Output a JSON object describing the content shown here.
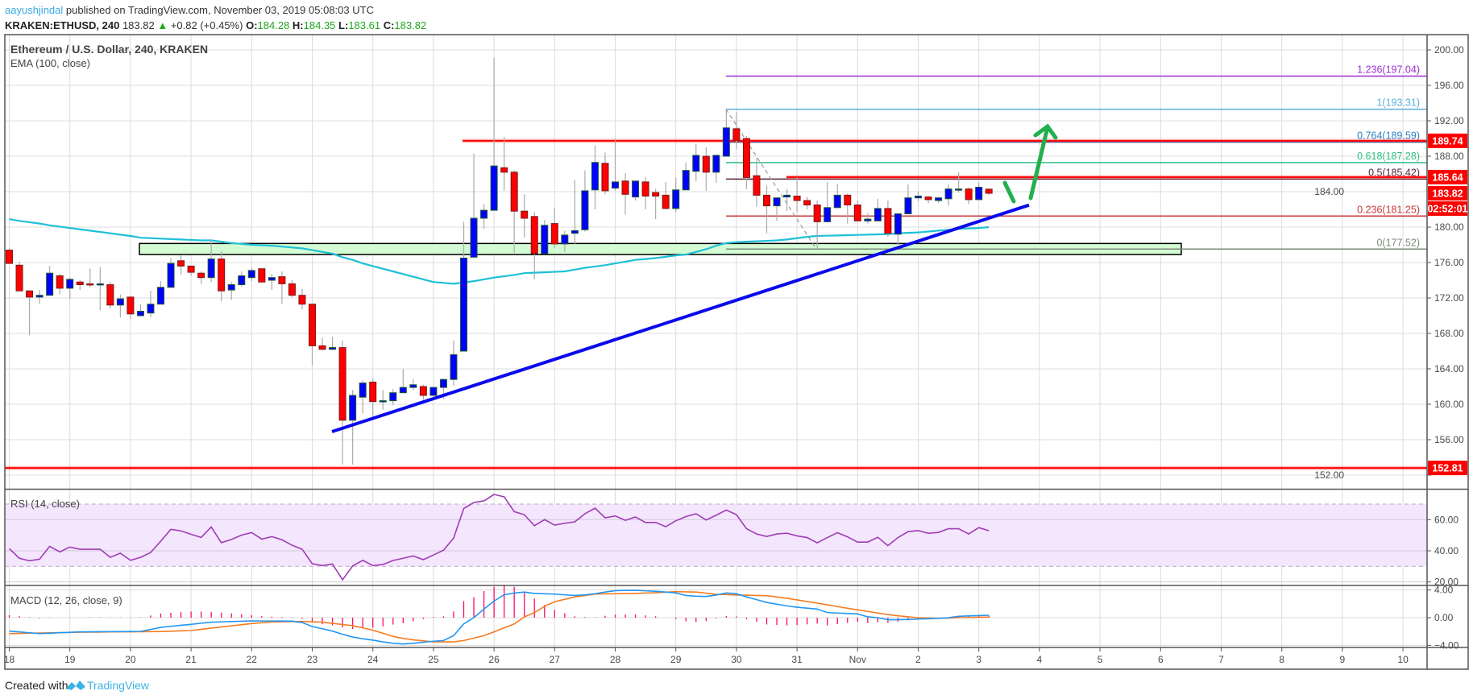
{
  "header": {
    "author": "aayushjindal",
    "published": "published on TradingView.com, November 03, 2019 05:08:03 UTC",
    "symbol": "KRAKEN:ETHUSD, 240",
    "last": "183.82",
    "change": "+0.82 (+0.45%)",
    "o_label": "O:",
    "o": "184.28",
    "h_label": "H:",
    "h": "184.35",
    "l_label": "L:",
    "l": "183.61",
    "c_label": "C:",
    "c": "183.82",
    "up_color": "#22a722"
  },
  "overlay": {
    "title": "Ethereum / U.S. Dollar, 240, KRAKEN",
    "ema": "EMA (100, close)",
    "rsi": "RSI (14, close)",
    "macd": "MACD (12, 26, close, 9)"
  },
  "footer": {
    "created_with": "Created with",
    "brand": "TradingView",
    "brand_color": "#3bb3e4"
  },
  "chart_data": {
    "type": "candlestick",
    "interval": "240",
    "up_color": "#0000ff",
    "down_color": "#ff0000",
    "price_ticks": [
      "200.00",
      "196.00",
      "192.00",
      "188.00",
      "184.00",
      "180.00",
      "176.00",
      "172.00",
      "168.00",
      "164.00",
      "160.00",
      "156.00",
      "152.00"
    ],
    "time_ticks": [
      "18",
      "19",
      "20",
      "21",
      "22",
      "23",
      "24",
      "25",
      "26",
      "27",
      "28",
      "29",
      "30",
      "31",
      "Nov",
      "2",
      "3",
      "4",
      "5",
      "6",
      "7",
      "8",
      "9",
      "10"
    ],
    "days": [
      {
        "date": "2019-10-18",
        "bars": [
          [
            177.4,
            177.6,
            175.9,
            175.9
          ],
          [
            175.7,
            176.1,
            172.8,
            172.8
          ],
          [
            172.8,
            172.8,
            167.8,
            172.1
          ],
          [
            172.1,
            172.9,
            171.3,
            172.3
          ],
          [
            172.3,
            175.6,
            172.3,
            174.8
          ],
          [
            174.5,
            174.7,
            172.4,
            173.1
          ]
        ]
      },
      {
        "date": "2019-10-19",
        "bars": [
          [
            173.1,
            174.3,
            171.9,
            174.1
          ],
          [
            173.8,
            174.0,
            172.9,
            173.5
          ],
          [
            173.6,
            175.3,
            173.2,
            173.5
          ],
          [
            173.5,
            175.5,
            170.6,
            173.6
          ],
          [
            173.5,
            173.8,
            170.8,
            171.2
          ],
          [
            171.2,
            172.4,
            169.8,
            171.9
          ]
        ]
      },
      {
        "date": "2019-10-20",
        "bars": [
          [
            172.1,
            172.1,
            169.6,
            170.2
          ],
          [
            170.0,
            171.3,
            169.9,
            170.5
          ],
          [
            170.3,
            172.8,
            169.8,
            171.3
          ],
          [
            171.3,
            173.9,
            171.3,
            173.2
          ],
          [
            173.2,
            176.5,
            173.2,
            175.9
          ],
          [
            176.2,
            176.8,
            174.6,
            175.6
          ]
        ]
      },
      {
        "date": "2019-10-21",
        "bars": [
          [
            175.6,
            175.6,
            174.5,
            174.9
          ],
          [
            174.8,
            175.0,
            173.6,
            174.3
          ],
          [
            174.3,
            178.5,
            173.8,
            176.4
          ],
          [
            176.4,
            177.3,
            171.6,
            172.8
          ],
          [
            172.9,
            173.8,
            171.8,
            173.5
          ],
          [
            173.5,
            175.0,
            173.3,
            174.5
          ]
        ]
      },
      {
        "date": "2019-10-22",
        "bars": [
          [
            174.3,
            175.4,
            173.9,
            175.1
          ],
          [
            175.3,
            175.3,
            173.8,
            173.8
          ],
          [
            174.0,
            174.7,
            172.9,
            174.3
          ],
          [
            174.4,
            175.0,
            171.3,
            173.6
          ],
          [
            173.6,
            174.0,
            172.1,
            172.3
          ],
          [
            172.3,
            173.0,
            170.7,
            171.3
          ]
        ]
      },
      {
        "date": "2019-10-23",
        "bars": [
          [
            171.3,
            171.3,
            164.4,
            166.6
          ],
          [
            166.6,
            167.5,
            166.1,
            166.2
          ],
          [
            166.2,
            167.6,
            166.1,
            166.4
          ],
          [
            166.4,
            167.2,
            153.2,
            158.2
          ],
          [
            158.2,
            161.6,
            153.2,
            161.0
          ],
          [
            160.8,
            162.7,
            159.0,
            162.4
          ]
        ]
      },
      {
        "date": "2019-10-24",
        "bars": [
          [
            162.5,
            162.9,
            158.5,
            160.3
          ],
          [
            160.3,
            161.6,
            159.4,
            160.4
          ],
          [
            160.4,
            161.7,
            159.9,
            161.3
          ],
          [
            161.3,
            164.0,
            161.3,
            161.9
          ],
          [
            161.9,
            162.8,
            161.6,
            162.2
          ],
          [
            162.0,
            162.2,
            160.5,
            161.0
          ]
        ]
      },
      {
        "date": "2019-10-25",
        "bars": [
          [
            161.0,
            161.9,
            160.9,
            161.9
          ],
          [
            161.9,
            162.9,
            160.6,
            162.8
          ],
          [
            162.8,
            167.2,
            162.1,
            165.6
          ],
          [
            166.0,
            180.6,
            166.0,
            176.5
          ],
          [
            176.6,
            188.3,
            176.6,
            181.0
          ],
          [
            181.0,
            182.6,
            179.8,
            181.9
          ]
        ]
      },
      {
        "date": "2019-10-26",
        "bars": [
          [
            181.9,
            199.1,
            181.9,
            186.9
          ],
          [
            186.7,
            190.2,
            184.1,
            186.2
          ],
          [
            186.2,
            186.4,
            177.1,
            181.8
          ],
          [
            181.8,
            183.7,
            178.8,
            181.0
          ],
          [
            181.2,
            181.7,
            174.1,
            177.0
          ],
          [
            177.0,
            180.8,
            177.0,
            180.2
          ]
        ]
      },
      {
        "date": "2019-10-27",
        "bars": [
          [
            180.4,
            182.2,
            177.6,
            178.1
          ],
          [
            178.1,
            179.6,
            177.2,
            179.1
          ],
          [
            179.3,
            185.3,
            178.1,
            179.6
          ],
          [
            179.7,
            186.4,
            179.5,
            184.1
          ],
          [
            184.2,
            189.2,
            182.0,
            187.3
          ],
          [
            187.2,
            188.4,
            183.7,
            184.1
          ]
        ]
      },
      {
        "date": "2019-10-28",
        "bars": [
          [
            184.4,
            190.0,
            184.1,
            185.1
          ],
          [
            185.2,
            186.1,
            181.4,
            183.7
          ],
          [
            183.4,
            185.2,
            183.0,
            185.2
          ],
          [
            185.1,
            185.6,
            182.0,
            183.5
          ],
          [
            183.9,
            184.3,
            180.9,
            183.5
          ],
          [
            183.6,
            185.1,
            182.0,
            182.1
          ]
        ]
      },
      {
        "date": "2019-10-29",
        "bars": [
          [
            182.1,
            185.6,
            181.7,
            184.2
          ],
          [
            184.2,
            187.3,
            184.2,
            186.4
          ],
          [
            186.3,
            189.4,
            185.2,
            188.1
          ],
          [
            188.0,
            189.0,
            184.1,
            186.2
          ],
          [
            186.2,
            188.2,
            185.0,
            188.1
          ],
          [
            188.0,
            193.31,
            188.0,
            191.2
          ]
        ]
      },
      {
        "date": "2019-10-30",
        "bars": [
          [
            191.1,
            193.0,
            188.8,
            189.8
          ],
          [
            190.0,
            190.3,
            184.3,
            185.6
          ],
          [
            185.8,
            187.8,
            182.3,
            183.6
          ],
          [
            183.6,
            184.7,
            179.3,
            182.4
          ],
          [
            182.4,
            183.3,
            180.7,
            183.3
          ],
          [
            183.4,
            184.3,
            181.8,
            183.6
          ]
        ]
      },
      {
        "date": "2019-10-31",
        "bars": [
          [
            183.5,
            185.6,
            181.7,
            183.0
          ],
          [
            183.0,
            183.4,
            182.0,
            182.5
          ],
          [
            182.5,
            183.0,
            177.52,
            180.6
          ],
          [
            180.6,
            185.1,
            180.6,
            182.2
          ],
          [
            182.2,
            184.9,
            182.2,
            183.6
          ],
          [
            183.6,
            183.8,
            180.4,
            182.5
          ]
        ]
      },
      {
        "date": "2019-11-01",
        "bars": [
          [
            182.5,
            183.0,
            180.7,
            180.7
          ],
          [
            180.7,
            181.6,
            180.4,
            180.9
          ],
          [
            180.7,
            183.2,
            180.7,
            182.1
          ],
          [
            182.1,
            183.0,
            178.9,
            179.3
          ],
          [
            179.2,
            181.5,
            178.0,
            181.5
          ],
          [
            181.5,
            184.8,
            181.5,
            183.3
          ]
        ]
      },
      {
        "date": "2019-11-02",
        "bars": [
          [
            183.3,
            184.0,
            182.9,
            183.5
          ],
          [
            183.4,
            183.5,
            182.7,
            183.1
          ],
          [
            183.0,
            183.4,
            182.7,
            183.3
          ],
          [
            183.2,
            184.8,
            182.4,
            184.3
          ],
          [
            184.3,
            186.2,
            183.9,
            184.3
          ],
          [
            184.3,
            184.5,
            182.6,
            183.1
          ]
        ]
      },
      {
        "date": "2019-11-03",
        "bars": [
          [
            183.1,
            185.0,
            183.1,
            184.5
          ],
          [
            184.28,
            184.35,
            183.61,
            183.82
          ]
        ]
      }
    ],
    "ema": {
      "name": "EMA (100, close)",
      "color": "#1ec0d8",
      "values": [
        180.9,
        180.7,
        180.55,
        180.4,
        180.2,
        180.05,
        179.9,
        179.75,
        179.6,
        179.45,
        179.3,
        179.15,
        179.0,
        178.8,
        178.75,
        178.7,
        178.65,
        178.6,
        178.55,
        178.5,
        178.5,
        178.35,
        178.2,
        178.1,
        178.0,
        177.95,
        177.9,
        177.8,
        177.7,
        177.6,
        177.4,
        177.2,
        177.0,
        176.6,
        176.3,
        175.9,
        175.6,
        175.3,
        175.0,
        174.7,
        174.4,
        174.1,
        173.8,
        173.7,
        173.6,
        173.75,
        173.9,
        174.1,
        174.3,
        174.45,
        174.6,
        174.8,
        174.85,
        174.9,
        174.95,
        175.0,
        175.2,
        175.4,
        175.55,
        175.7,
        175.9,
        176.1,
        176.3,
        176.4,
        176.5,
        176.65,
        176.8,
        176.9,
        177.2,
        177.5,
        177.9,
        178.2,
        178.3,
        178.35,
        178.4,
        178.45,
        178.5,
        178.6,
        178.75,
        178.9,
        179.0,
        179.03,
        179.06,
        179.09,
        179.12,
        179.15,
        179.18,
        179.2,
        179.3,
        179.35,
        179.4,
        179.5,
        179.6,
        179.7,
        179.8,
        179.85,
        179.9,
        180.0
      ]
    },
    "levels": [
      {
        "price": 189.74,
        "tag": "189.74",
        "color": "#ff0000"
      },
      {
        "price": 185.64,
        "tag": "185.64",
        "color": "#ff0000"
      },
      {
        "price": 152.81,
        "tag": "152.81",
        "color": "#ff0000"
      }
    ],
    "last_price_tag": "183.82",
    "countdown": "02:52:01",
    "fib": [
      {
        "label": "1.236(197.04)",
        "price": 197.04,
        "color": "#9c2fd0"
      },
      {
        "label": "1(193.31)",
        "price": 193.31,
        "color": "#5aaedc"
      },
      {
        "label": "0.764(189.59)",
        "price": 189.59,
        "color": "#2a80c0"
      },
      {
        "label": "0.618(187.28)",
        "price": 187.28,
        "color": "#2fbf86"
      },
      {
        "label": "0.5(185.42)",
        "price": 185.42,
        "color": "#5a2238"
      },
      {
        "label": "0.236(181.25)",
        "price": 181.25,
        "color": "#c43a3a"
      },
      {
        "label": "0(177.52)",
        "price": 177.52,
        "color": "#7a8a7a"
      }
    ],
    "support_zone": {
      "from": 176.9,
      "to": 178.15,
      "fill": "#d4fcd4"
    },
    "rsi": {
      "title": "RSI (14, close)",
      "color": "#a03cb4",
      "band": [
        30,
        70
      ],
      "ticks": [
        "60.00",
        "40.00",
        "20.00"
      ],
      "values": [
        41.4,
        35.2,
        33.6,
        34.6,
        42.9,
        39.3,
        42.4,
        41,
        41,
        41,
        35.8,
        38.5,
        33.9,
        35.8,
        38.9,
        46.2,
        53.8,
        52.8,
        50.6,
        48.6,
        55.3,
        45.2,
        47.3,
        50.1,
        51.7,
        47.5,
        49.1,
        47.1,
        43.6,
        41,
        31.7,
        30.5,
        31.5,
        21.4,
        30.3,
        33.9,
        30.5,
        31.2,
        33.8,
        35.2,
        36.7,
        34.3,
        37.3,
        40.4,
        48.2,
        67.2,
        71.0,
        72.1,
        76.2,
        74.7,
        65.2,
        63.2,
        56.1,
        60.1,
        56.5,
        57.7,
        58.6,
        63.8,
        67.4,
        61.2,
        62.4,
        59.6,
        61.7,
        58.2,
        58.2,
        55.5,
        59.3,
        62.0,
        63.8,
        59.8,
        62.9,
        66.2,
        63.2,
        54.2,
        50.8,
        49.2,
        50.8,
        51.3,
        49.6,
        48.5,
        45.1,
        48.5,
        51.6,
        49.0,
        45.6,
        45.6,
        48.7,
        43.3,
        48.5,
        52.3,
        53.0,
        51.3,
        51.8,
        54.2,
        54.2,
        50.8,
        54.9,
        52.9
      ]
    },
    "macd": {
      "title": "MACD (12, 26, close, 9)",
      "macd_color": "#2196f3",
      "signal_color": "#f57c20",
      "hist_color": "#ff0a6c",
      "ticks": [
        "4.00",
        "0.00",
        "−4.00"
      ],
      "macd": [
        -1.94,
        -2.06,
        -2.18,
        -2.3,
        -2.24,
        -2.18,
        -2.11,
        -2.05,
        -2.04,
        -2.03,
        -2.02,
        -2.01,
        -2.0,
        -1.98,
        -1.7,
        -1.4,
        -1.25,
        -1.1,
        -0.97,
        -0.8,
        -0.66,
        -0.61,
        -0.56,
        -0.51,
        -0.47,
        -0.48,
        -0.48,
        -0.49,
        -0.5,
        -0.7,
        -1.28,
        -1.6,
        -1.94,
        -2.4,
        -2.8,
        -3.05,
        -3.25,
        -3.5,
        -3.7,
        -3.8,
        -3.7,
        -3.55,
        -3.4,
        -3.3,
        -2.6,
        -0.9,
        0,
        1.24,
        2.4,
        3.3,
        3.55,
        3.7,
        3.5,
        3.45,
        3.4,
        3.3,
        3.2,
        3.3,
        3.45,
        3.7,
        3.9,
        3.93,
        3.95,
        3.88,
        3.8,
        3.7,
        3.57,
        3.2,
        3.1,
        3.06,
        3.26,
        3.57,
        3.45,
        3.0,
        2.6,
        2.2,
        1.94,
        1.7,
        1.5,
        1.37,
        1.24,
        0.74,
        0.67,
        0.6,
        0.54,
        0.12,
        0,
        -0.3,
        -0.3,
        -0.25,
        -0.2,
        -0.15,
        -0.1,
        0,
        0.2,
        0.25,
        0.3,
        0.35
      ],
      "signal": [
        -2.3,
        -2.27,
        -2.24,
        -2.21,
        -2.19,
        -2.16,
        -2.13,
        -2.1,
        -2.09,
        -2.08,
        -2.06,
        -2.05,
        -2.04,
        -2.03,
        -2.01,
        -2.0,
        -1.95,
        -1.9,
        -1.86,
        -1.68,
        -1.5,
        -1.34,
        -1.18,
        -1.01,
        -0.85,
        -0.73,
        -0.62,
        -0.59,
        -0.57,
        -0.54,
        -0.6,
        -0.65,
        -0.82,
        -0.99,
        -1.16,
        -1.48,
        -1.8,
        -2.25,
        -2.7,
        -3.0,
        -3.2,
        -3.35,
        -3.5,
        -3.5,
        -3.5,
        -3.3,
        -2.95,
        -2.6,
        -2.05,
        -1.47,
        -0.9,
        0.1,
        0.74,
        1.63,
        2.3,
        2.65,
        3.0,
        3.2,
        3.4,
        3.43,
        3.45,
        3.48,
        3.5,
        3.55,
        3.6,
        3.68,
        3.76,
        3.73,
        3.7,
        3.54,
        3.37,
        3.33,
        3.26,
        3.23,
        3.2,
        3.18,
        3.0,
        2.8,
        2.57,
        2.33,
        2.1,
        1.85,
        1.6,
        1.36,
        1.13,
        0.9,
        0.66,
        0.46,
        0.27,
        0.13,
        0,
        -0.05,
        -0.1,
        -0.05,
        0,
        0.03,
        0.05,
        0.08
      ]
    }
  }
}
